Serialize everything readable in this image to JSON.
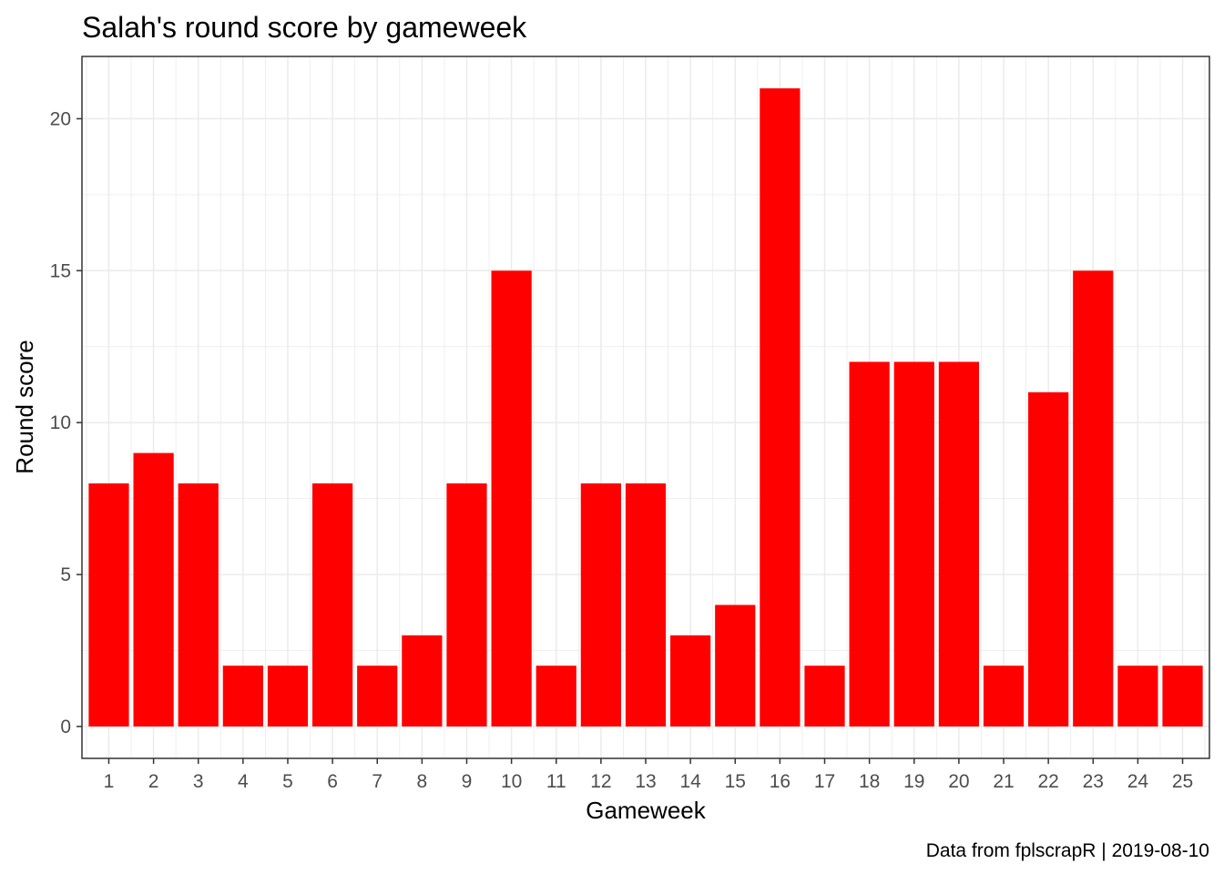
{
  "chart_data": {
    "type": "bar",
    "title": "Salah's round score by gameweek",
    "xlabel": "Gameweek",
    "ylabel": "Round score",
    "caption": "Data from fplscrapR | 2019-08-10",
    "categories": [
      "1",
      "2",
      "3",
      "4",
      "5",
      "6",
      "7",
      "8",
      "9",
      "10",
      "11",
      "12",
      "13",
      "14",
      "15",
      "16",
      "17",
      "18",
      "19",
      "20",
      "21",
      "22",
      "23",
      "24",
      "25"
    ],
    "values": [
      8,
      9,
      8,
      2,
      2,
      8,
      2,
      3,
      8,
      15,
      2,
      8,
      8,
      3,
      4,
      21,
      2,
      12,
      12,
      12,
      2,
      11,
      15,
      2,
      2
    ],
    "y_ticks": [
      "0",
      "5",
      "10",
      "15",
      "20"
    ],
    "ylim": [
      -1.05,
      22.05
    ],
    "grid": true,
    "colors": {
      "bar": "#ff0000",
      "grid": "#ebebeb",
      "panel_border": "#333333"
    }
  }
}
